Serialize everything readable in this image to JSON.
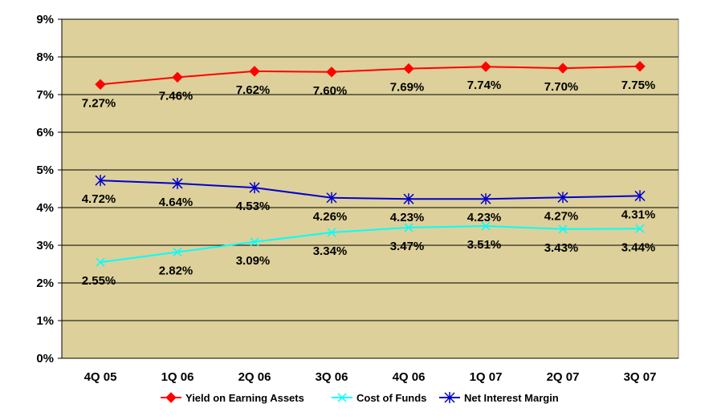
{
  "chart_data": {
    "type": "line",
    "categories": [
      "4Q 05",
      "1Q 06",
      "2Q 06",
      "3Q 06",
      "4Q 06",
      "1Q 07",
      "2Q 07",
      "3Q 07"
    ],
    "ylim": [
      0,
      9
    ],
    "y_ticks": [
      "0%",
      "1%",
      "2%",
      "3%",
      "4%",
      "5%",
      "6%",
      "7%",
      "8%",
      "9%"
    ],
    "grid": true,
    "legend_position": "bottom",
    "plot_background": "#DDD09A",
    "series": [
      {
        "name": "Yield on Earning Assets",
        "color": "#FF0000",
        "marker": "diamond",
        "values": [
          7.27,
          7.46,
          7.62,
          7.6,
          7.69,
          7.74,
          7.7,
          7.75
        ],
        "labels": [
          "7.27%",
          "7.46%",
          "7.62%",
          "7.60%",
          "7.69%",
          "7.74%",
          "7.70%",
          "7.75%"
        ]
      },
      {
        "name": "Cost of Funds",
        "color": "#00FFFF",
        "marker": "x",
        "values": [
          2.55,
          2.82,
          3.09,
          3.34,
          3.47,
          3.51,
          3.43,
          3.44
        ],
        "labels": [
          "2.55%",
          "2.82%",
          "3.09%",
          "3.34%",
          "3.47%",
          "3.51%",
          "3.43%",
          "3.44%"
        ]
      },
      {
        "name": "Net Interest Margin",
        "color": "#0000CC",
        "marker": "asterisk",
        "values": [
          4.72,
          4.64,
          4.53,
          4.26,
          4.23,
          4.23,
          4.27,
          4.31
        ],
        "labels": [
          "4.72%",
          "4.64%",
          "4.53%",
          "4.26%",
          "4.23%",
          "4.23%",
          "4.27%",
          "4.31%"
        ]
      }
    ]
  }
}
